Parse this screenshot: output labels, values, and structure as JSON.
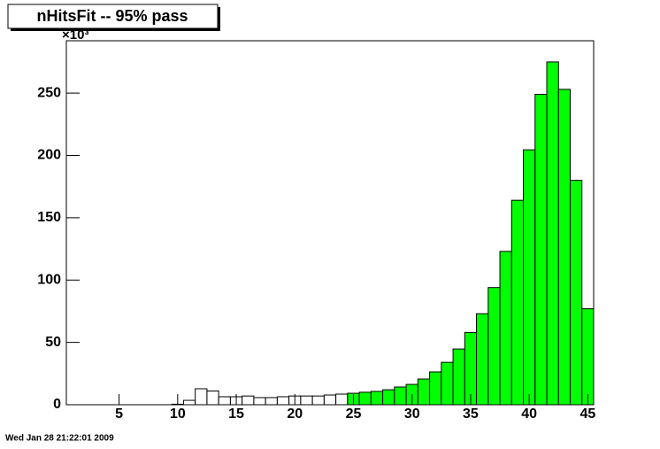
{
  "chart_data": {
    "type": "histogram",
    "title": "nHitsFit -- 95% pass",
    "y_multiplier": "×10³",
    "footer": "Wed Jan 28 21:22:01 2009",
    "bins": [
      0.5,
      1.5,
      2.5,
      3.5,
      4.5,
      5.5,
      6.5,
      7.5,
      8.5,
      9.5,
      10.5,
      11.5,
      12.5,
      13.5,
      14.5,
      15.5,
      16.5,
      17.5,
      18.5,
      19.5,
      20.5,
      21.5,
      22.5,
      23.5,
      24.5,
      25.5,
      26.5,
      27.5,
      28.5,
      29.5,
      30.5,
      31.5,
      32.5,
      33.5,
      34.5,
      35.5,
      36.5,
      37.5,
      38.5,
      39.5,
      40.5,
      41.5,
      42.5,
      43.5,
      44.5,
      45.5
    ],
    "values": [
      0,
      0,
      0,
      0,
      0,
      0,
      0,
      0,
      0,
      0.4,
      3.5,
      12.8,
      11,
      6.4,
      6.4,
      7,
      5.7,
      5.7,
      6.4,
      7,
      7,
      7,
      7.8,
      8.5,
      9.2,
      10,
      10.7,
      12,
      14.2,
      16.3,
      20.6,
      26.3,
      34,
      44.7,
      58,
      73,
      94,
      123,
      164,
      204.5,
      249,
      275,
      253,
      180,
      77
    ],
    "color": "#ffffff",
    "fill_color": "#00ff00",
    "fill_xlim": [
      24.5,
      45.5
    ],
    "xlim": [
      0.5,
      45.5
    ],
    "xticks": [
      5,
      10,
      15,
      20,
      25,
      30,
      35,
      40,
      45
    ],
    "ylim": [
      0,
      292
    ],
    "yticks": [
      0,
      50,
      100,
      150,
      200,
      250
    ]
  }
}
